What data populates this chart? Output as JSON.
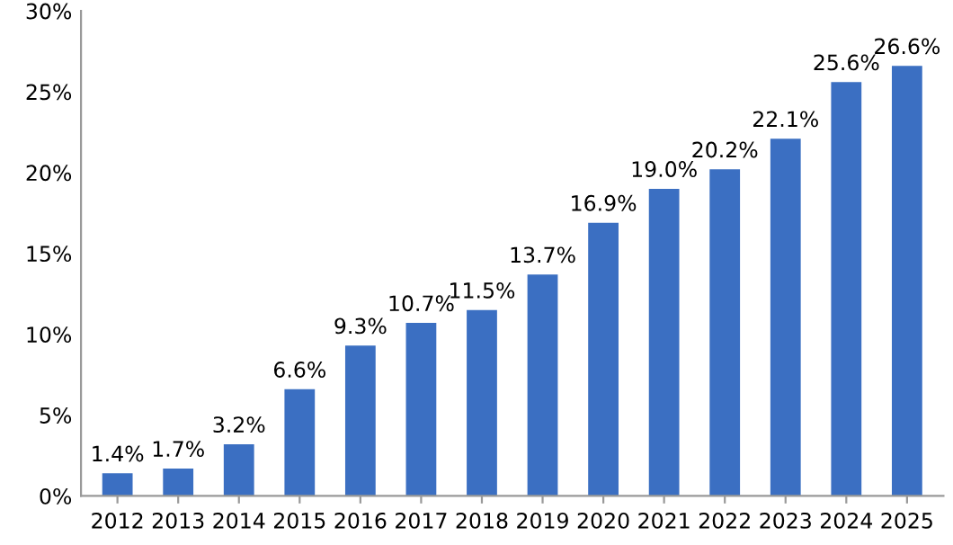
{
  "chart_data": {
    "type": "bar",
    "categories": [
      "2012",
      "2013",
      "2014",
      "2015",
      "2016",
      "2017",
      "2018",
      "2019",
      "2020",
      "2021",
      "2022",
      "2023",
      "2024",
      "2025"
    ],
    "values": [
      1.4,
      1.7,
      3.2,
      6.6,
      9.3,
      10.7,
      11.5,
      13.7,
      16.9,
      19.0,
      20.2,
      22.1,
      25.6,
      26.6
    ],
    "value_labels": [
      "1.4%",
      "1.7%",
      "3.2%",
      "6.6%",
      "9.3%",
      "10.7%",
      "11.5%",
      "13.7%",
      "16.9%",
      "19.0%",
      "20.2%",
      "22.1%",
      "25.6%",
      "26.6%"
    ],
    "color": "#3b6fc2",
    "ylim": [
      0,
      30
    ],
    "yticks": [
      {
        "value": 0,
        "label": "0%"
      },
      {
        "value": 5,
        "label": "5%"
      },
      {
        "value": 10,
        "label": "10%"
      },
      {
        "value": 15,
        "label": "15%"
      },
      {
        "value": 20,
        "label": "20%"
      },
      {
        "value": 25,
        "label": "25%"
      },
      {
        "value": 30,
        "label": "30%"
      }
    ],
    "grid": false
  }
}
